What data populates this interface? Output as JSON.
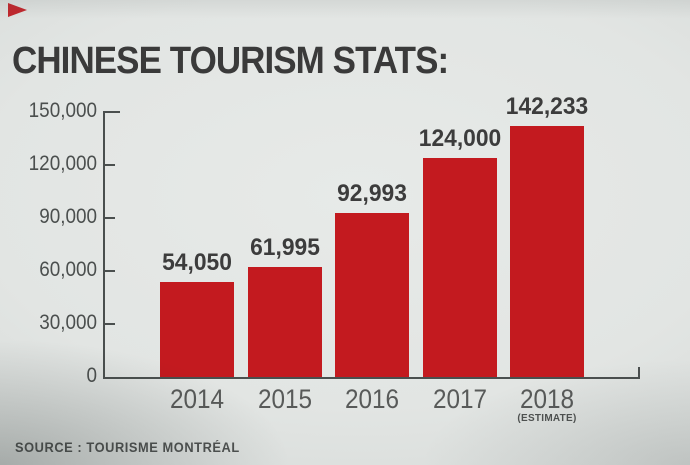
{
  "page": {
    "title_label": "CHINESE TOURISM STATS:",
    "source_label": "SOURCE : TOURISME MONTRÉAL"
  },
  "decor": {
    "corner_triangle_color": "#c0262c",
    "background_color": "#e2e5e3"
  },
  "chart_data": {
    "type": "bar",
    "title": "CHINESE TOURISM STATS:",
    "categories": [
      "2014",
      "2015",
      "2016",
      "2017",
      "2018"
    ],
    "values": [
      54050,
      61995,
      92993,
      124000,
      142233
    ],
    "value_labels": [
      "54,050",
      "61,995",
      "92,993",
      "124,000",
      "142,233"
    ],
    "category_note": {
      "index": 4,
      "label": "(ESTIMATE)"
    },
    "xlabel": "",
    "ylabel": "",
    "ylim": [
      0,
      150000
    ],
    "yticks": [
      0,
      30000,
      60000,
      90000,
      120000,
      150000
    ],
    "ytick_labels": [
      "0",
      "30,000",
      "60,000",
      "90,000",
      "120,000",
      "150,000"
    ],
    "grid": false,
    "legend": null,
    "bar_color": "#c31a1f",
    "axis_color": "#4a4f4e",
    "source": "SOURCE : TOURISME MONTRÉAL"
  }
}
